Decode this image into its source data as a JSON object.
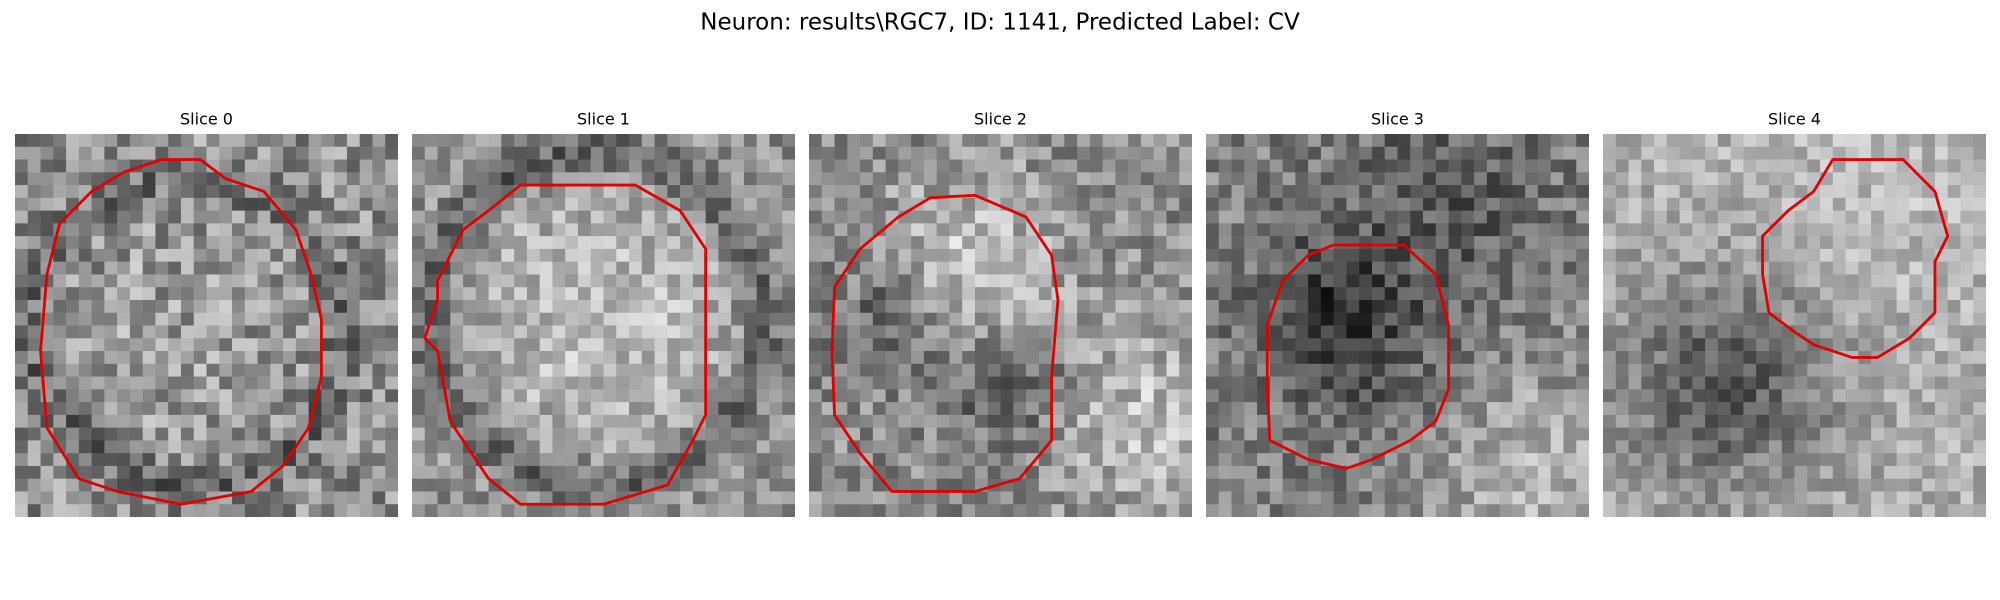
{
  "figure": {
    "title": "Neuron: results\\RGC7, ID: 1141, Predicted Label: CV",
    "panels": [
      {
        "title": "Slice 0"
      },
      {
        "title": "Slice 1"
      },
      {
        "title": "Slice 2"
      },
      {
        "title": "Slice 3"
      },
      {
        "title": "Slice 4"
      }
    ]
  }
}
